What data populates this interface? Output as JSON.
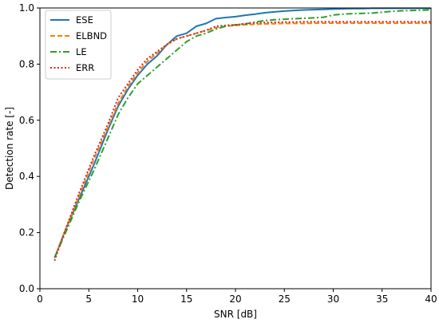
{
  "chart_data": {
    "type": "line",
    "title": "",
    "xlabel": "SNR [dB]",
    "ylabel": "Detection rate [-]",
    "xlim": [
      0,
      40
    ],
    "ylim": [
      0,
      1.0
    ],
    "xticks": [
      0,
      5,
      10,
      15,
      20,
      25,
      30,
      35,
      40
    ],
    "yticks": [
      0.0,
      0.2,
      0.4,
      0.6,
      0.8,
      1.0
    ],
    "xtick_labels": [
      "0",
      "5",
      "10",
      "15",
      "20",
      "25",
      "30",
      "35",
      "40"
    ],
    "ytick_labels": [
      "0.0",
      "0.2",
      "0.4",
      "0.6",
      "0.8",
      "1.0"
    ],
    "grid": false,
    "legend_position": "top-left",
    "series": [
      {
        "name": "ESE",
        "color": "#1f77b4",
        "style": "solid",
        "x": [
          1.5,
          2.5,
          4,
          5.5,
          7,
          8,
          9,
          10,
          11,
          12,
          13,
          14,
          15,
          16,
          17,
          18,
          19,
          20,
          21,
          22,
          23,
          24,
          25,
          26,
          27,
          28,
          29,
          30,
          31,
          32,
          33,
          34,
          35,
          36,
          37,
          38,
          39,
          40
        ],
        "y": [
          0.11,
          0.2,
          0.32,
          0.44,
          0.57,
          0.65,
          0.71,
          0.76,
          0.8,
          0.83,
          0.87,
          0.9,
          0.91,
          0.935,
          0.945,
          0.962,
          0.966,
          0.969,
          0.974,
          0.978,
          0.983,
          0.986,
          0.989,
          0.991,
          0.993,
          0.994,
          0.995,
          0.996,
          0.997,
          0.998,
          0.998,
          0.999,
          0.999,
          0.999,
          0.999,
          0.999,
          0.999,
          0.999
        ]
      },
      {
        "name": "ELBND",
        "color": "#ff7f0e",
        "style": "dashed",
        "x": [
          1.5,
          2.5,
          4,
          5.5,
          7,
          8,
          9,
          10,
          11,
          12,
          13,
          14,
          15,
          16,
          17,
          18,
          19,
          20,
          21,
          22,
          23,
          24,
          25,
          26,
          27,
          28,
          29,
          30,
          31,
          32,
          33,
          34,
          35,
          36,
          37,
          38,
          39,
          40
        ],
        "y": [
          0.11,
          0.2,
          0.33,
          0.46,
          0.58,
          0.66,
          0.72,
          0.77,
          0.81,
          0.84,
          0.87,
          0.89,
          0.9,
          0.91,
          0.92,
          0.93,
          0.935,
          0.938,
          0.94,
          0.942,
          0.943,
          0.944,
          0.945,
          0.945,
          0.945,
          0.946,
          0.946,
          0.946,
          0.946,
          0.946,
          0.946,
          0.946,
          0.946,
          0.946,
          0.946,
          0.946,
          0.946,
          0.946
        ]
      },
      {
        "name": "LE",
        "color": "#2ca02c",
        "style": "dashdot",
        "x": [
          1.5,
          2.5,
          4,
          5.5,
          7,
          8,
          9,
          10,
          11,
          12,
          13,
          14,
          15,
          16,
          17,
          18,
          19,
          20,
          21,
          22,
          23,
          24,
          25,
          26,
          27,
          28,
          29,
          30,
          31,
          32,
          33,
          34,
          35,
          36,
          37,
          38,
          39,
          40
        ],
        "y": [
          0.11,
          0.19,
          0.31,
          0.42,
          0.54,
          0.62,
          0.68,
          0.73,
          0.76,
          0.79,
          0.82,
          0.85,
          0.88,
          0.9,
          0.91,
          0.925,
          0.935,
          0.94,
          0.943,
          0.95,
          0.955,
          0.958,
          0.96,
          0.962,
          0.963,
          0.965,
          0.967,
          0.975,
          0.978,
          0.98,
          0.981,
          0.982,
          0.985,
          0.988,
          0.99,
          0.991,
          0.992,
          0.993
        ]
      },
      {
        "name": "ERR",
        "color": "#d62728",
        "style": "dotted",
        "x": [
          1.5,
          2.5,
          4,
          5.5,
          7,
          8,
          9,
          10,
          11,
          12,
          13,
          14,
          15,
          16,
          17,
          18,
          19,
          20,
          21,
          22,
          23,
          24,
          25,
          26,
          27,
          28,
          29,
          30,
          31,
          32,
          33,
          34,
          35,
          36,
          37,
          38,
          39,
          40
        ],
        "y": [
          0.1,
          0.2,
          0.34,
          0.47,
          0.59,
          0.68,
          0.73,
          0.78,
          0.82,
          0.845,
          0.87,
          0.89,
          0.9,
          0.91,
          0.92,
          0.935,
          0.938,
          0.94,
          0.944,
          0.946,
          0.948,
          0.949,
          0.95,
          0.95,
          0.951,
          0.951,
          0.951,
          0.951,
          0.951,
          0.951,
          0.951,
          0.951,
          0.951,
          0.951,
          0.951,
          0.951,
          0.951,
          0.951
        ]
      }
    ]
  }
}
